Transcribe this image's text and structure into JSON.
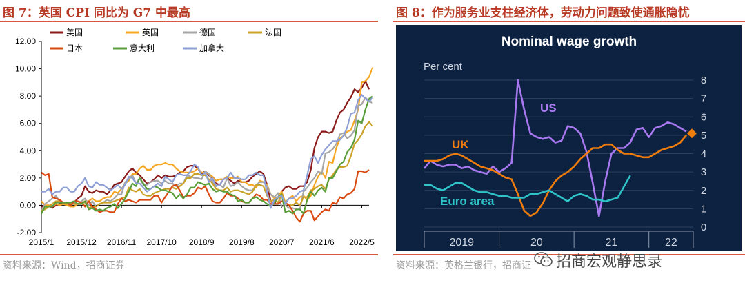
{
  "left_panel": {
    "figure_title": "图 7：英国 CPI 同比为 G7 中最高",
    "source": "资料来源：Wind，招商证券"
  },
  "right_panel": {
    "figure_title": "图 8：作为服务业支柱经济体，劳动力问题致使通胀隐忧",
    "source": "资料来源：英格兰银行，招商证",
    "watermark": "招商宏观静思录",
    "watermark_icon": "wechat-icon"
  },
  "chart_data": [
    {
      "type": "line",
      "title": "",
      "xlabel": "",
      "ylabel": "",
      "x_tick_labels": [
        "2015/1",
        "2015/12",
        "2016/11",
        "2017/10",
        "2018/9",
        "2019/8",
        "2020/7",
        "2021/6",
        "2022/5"
      ],
      "x_tick_months": [
        0,
        11,
        22,
        33,
        44,
        55,
        66,
        77,
        88
      ],
      "y_ticks": [
        "-2.00",
        "0.00",
        "2.00",
        "4.00",
        "6.00",
        "8.00",
        "10.00",
        "12.00"
      ],
      "ylim": [
        -2,
        12
      ],
      "grid": false,
      "legend": "top-left",
      "series": [
        {
          "name": "美国",
          "color": "#8b1a1a",
          "values": [
            -0.1,
            -0.1,
            0.0,
            -0.2,
            0.0,
            0.1,
            0.2,
            0.2,
            0.0,
            0.2,
            0.5,
            0.7,
            1.4,
            1.0,
            0.9,
            1.1,
            1.0,
            1.0,
            0.8,
            1.1,
            1.5,
            1.6,
            1.7,
            2.1,
            2.5,
            2.7,
            2.4,
            2.2,
            1.9,
            1.6,
            1.7,
            1.9,
            2.2,
            2.0,
            2.2,
            2.1,
            2.1,
            2.2,
            2.4,
            2.5,
            2.8,
            2.9,
            2.9,
            2.7,
            2.3,
            2.5,
            2.2,
            1.9,
            1.6,
            1.5,
            1.9,
            2.0,
            1.8,
            1.6,
            1.8,
            1.7,
            1.7,
            1.8,
            2.1,
            2.3,
            2.5,
            2.3,
            1.5,
            0.3,
            0.1,
            0.6,
            1.0,
            1.3,
            1.4,
            1.2,
            1.2,
            1.4,
            1.4,
            1.7,
            2.6,
            4.2,
            5.0,
            5.4,
            5.4,
            5.3,
            5.4,
            6.2,
            6.8,
            7.0,
            7.5,
            7.9,
            8.5,
            8.3,
            8.6,
            9.1,
            8.5
          ]
        },
        {
          "name": "英国",
          "color": "#f5a623",
          "values": [
            0.3,
            0.0,
            0.0,
            -0.1,
            0.1,
            0.0,
            0.1,
            0.0,
            -0.1,
            -0.1,
            0.1,
            0.2,
            0.3,
            0.3,
            0.5,
            0.3,
            0.3,
            0.5,
            0.6,
            0.6,
            1.0,
            0.9,
            1.2,
            1.6,
            1.8,
            2.3,
            2.3,
            2.7,
            2.9,
            2.6,
            2.6,
            2.9,
            3.0,
            3.0,
            3.1,
            3.0,
            3.0,
            2.7,
            2.5,
            2.4,
            2.4,
            2.4,
            2.5,
            2.7,
            2.4,
            2.4,
            2.3,
            2.1,
            1.8,
            1.9,
            1.9,
            2.1,
            2.0,
            2.0,
            2.1,
            1.7,
            1.7,
            1.5,
            1.5,
            1.3,
            1.8,
            1.7,
            1.5,
            0.8,
            0.5,
            0.6,
            1.0,
            0.2,
            0.5,
            0.7,
            0.3,
            0.6,
            0.7,
            0.4,
            0.7,
            1.5,
            2.1,
            2.5,
            2.0,
            3.2,
            3.1,
            4.2,
            4.9,
            5.1,
            5.4,
            5.5,
            6.2,
            7.0,
            9.0,
            9.1,
            9.4,
            10.1
          ]
        },
        {
          "name": "德国",
          "color": "#a6a6a6",
          "values": [
            -0.4,
            0.1,
            0.3,
            0.5,
            0.7,
            0.3,
            0.2,
            0.2,
            0.0,
            0.2,
            0.1,
            0.3,
            0.5,
            0.0,
            0.3,
            -0.1,
            0.1,
            0.2,
            0.4,
            0.3,
            0.5,
            0.8,
            0.8,
            1.7,
            1.9,
            2.2,
            1.6,
            2.0,
            1.5,
            1.5,
            1.7,
            1.8,
            1.8,
            1.6,
            1.8,
            1.6,
            1.6,
            1.4,
            1.6,
            1.6,
            2.2,
            2.1,
            2.0,
            2.0,
            1.9,
            2.5,
            2.3,
            1.7,
            1.4,
            1.5,
            1.3,
            2.0,
            1.4,
            1.5,
            1.7,
            1.4,
            1.2,
            1.1,
            1.1,
            1.5,
            1.7,
            1.7,
            1.4,
            0.8,
            0.6,
            0.9,
            -0.1,
            0.0,
            -0.2,
            -0.2,
            -0.3,
            -0.3,
            1.0,
            1.3,
            1.7,
            2.0,
            2.5,
            2.3,
            3.8,
            3.9,
            4.1,
            4.5,
            5.2,
            5.3,
            4.9,
            5.1,
            5.5,
            7.3,
            7.4,
            7.9,
            7.6,
            7.5
          ]
        },
        {
          "name": "法国",
          "color": "#c9a227",
          "values": [
            -0.4,
            -0.3,
            -0.1,
            0.1,
            0.3,
            0.3,
            0.2,
            0.1,
            0.1,
            0.1,
            0.1,
            0.2,
            0.2,
            -0.2,
            -0.1,
            -0.1,
            0.1,
            0.2,
            0.2,
            0.2,
            0.3,
            0.4,
            0.5,
            0.6,
            1.3,
            1.1,
            1.0,
            1.2,
            0.8,
            0.7,
            0.7,
            0.9,
            1.0,
            1.1,
            1.2,
            1.2,
            1.3,
            1.2,
            1.4,
            1.6,
            2.0,
            2.0,
            2.3,
            2.3,
            2.2,
            2.2,
            1.9,
            1.6,
            1.2,
            1.1,
            1.1,
            1.3,
            1.0,
            1.1,
            1.1,
            1.0,
            0.9,
            0.8,
            1.0,
            1.5,
            1.5,
            1.4,
            0.7,
            0.3,
            0.4,
            0.2,
            0.8,
            0.2,
            0.0,
            0.0,
            0.2,
            0.0,
            0.6,
            0.6,
            1.1,
            1.2,
            1.4,
            1.5,
            1.2,
            1.9,
            2.2,
            2.6,
            2.8,
            2.8,
            2.9,
            3.6,
            4.5,
            4.8,
            5.2,
            5.8,
            6.1,
            5.8
          ]
        },
        {
          "name": "日本",
          "color": "#d9480f",
          "values": [
            2.4,
            2.2,
            2.3,
            0.6,
            0.5,
            0.4,
            0.2,
            0.2,
            0.0,
            0.3,
            0.3,
            0.2,
            -0.1,
            0.3,
            -0.1,
            -0.3,
            -0.5,
            -0.4,
            -0.4,
            -0.5,
            -0.5,
            0.1,
            0.5,
            0.3,
            0.4,
            0.3,
            0.2,
            0.4,
            0.4,
            0.4,
            0.4,
            0.7,
            0.7,
            0.2,
            0.6,
            1.0,
            1.4,
            1.5,
            1.1,
            0.6,
            0.7,
            0.7,
            0.9,
            1.3,
            1.2,
            1.4,
            0.8,
            0.3,
            0.2,
            0.2,
            0.5,
            0.9,
            0.7,
            0.7,
            0.5,
            0.3,
            0.2,
            0.2,
            0.5,
            0.8,
            0.7,
            0.4,
            0.4,
            0.1,
            0.1,
            0.1,
            0.3,
            0.2,
            0.0,
            -0.4,
            -0.9,
            -1.2,
            -0.6,
            -0.4,
            -0.4,
            -1.1,
            -0.8,
            -0.5,
            -0.3,
            -0.4,
            0.2,
            0.1,
            0.6,
            0.5,
            0.8,
            0.9,
            1.2,
            2.5,
            2.5,
            2.4,
            2.6
          ]
        },
        {
          "name": "意大利",
          "color": "#5a9e3a",
          "values": [
            -0.6,
            -0.1,
            -0.1,
            -0.1,
            0.2,
            0.2,
            0.2,
            0.2,
            0.2,
            0.3,
            0.1,
            0.1,
            0.3,
            -0.3,
            -0.2,
            -0.4,
            -0.3,
            -0.4,
            -0.2,
            -0.1,
            0.1,
            -0.2,
            0.1,
            0.5,
            1.0,
            1.6,
            1.4,
            2.0,
            1.6,
            1.2,
            1.2,
            1.4,
            1.3,
            1.1,
            1.1,
            1.0,
            0.9,
            0.5,
            0.8,
            0.5,
            0.8,
            1.3,
            1.3,
            1.7,
            1.6,
            1.5,
            1.6,
            1.2,
            1.0,
            1.1,
            1.0,
            1.0,
            0.8,
            0.7,
            0.3,
            0.4,
            0.2,
            0.2,
            0.5,
            0.6,
            0.4,
            0.3,
            0.1,
            -0.1,
            0.2,
            0.6,
            0.8,
            -0.5,
            -0.4,
            -0.6,
            -0.3,
            -0.3,
            -0.6,
            0.4,
            1.0,
            0.7,
            1.1,
            1.3,
            1.0,
            2.0,
            2.0,
            2.5,
            3.0,
            3.2,
            3.9,
            4.2,
            4.8,
            6.2,
            6.0,
            7.0,
            7.8,
            8.0
          ]
        },
        {
          "name": "加拿大",
          "color": "#8e9fd6",
          "values": [
            1.0,
            1.0,
            1.2,
            0.8,
            1.0,
            1.0,
            1.3,
            1.3,
            1.0,
            1.0,
            1.4,
            1.6,
            2.0,
            1.4,
            1.3,
            1.7,
            1.5,
            1.5,
            1.3,
            1.1,
            1.3,
            1.5,
            1.2,
            1.5,
            2.1,
            2.0,
            1.6,
            1.6,
            1.3,
            1.0,
            1.2,
            1.4,
            1.6,
            1.4,
            2.1,
            1.9,
            1.7,
            2.2,
            2.3,
            2.2,
            2.2,
            2.5,
            3.0,
            2.8,
            2.2,
            2.4,
            1.7,
            2.0,
            1.4,
            1.5,
            1.9,
            2.0,
            2.4,
            2.0,
            2.0,
            1.9,
            1.9,
            2.2,
            2.2,
            2.4,
            2.2,
            2.2,
            0.9,
            -0.2,
            0.4,
            0.6,
            0.7,
            0.1,
            0.5,
            0.5,
            0.7,
            1.0,
            1.1,
            2.2,
            3.4,
            3.6,
            3.1,
            3.7,
            4.1,
            4.4,
            4.7,
            4.7,
            4.8,
            5.1,
            5.7,
            6.7,
            6.8,
            7.7,
            8.1,
            7.8,
            7.6,
            7.9
          ]
        }
      ]
    },
    {
      "type": "line",
      "title": "Nominal wage growth",
      "ylabel": "Per cent",
      "y_ticks": [
        "0",
        "1",
        "2",
        "3",
        "4",
        "5",
        "6",
        "7",
        "8"
      ],
      "ylim": [
        0,
        8
      ],
      "x_tick_labels": [
        "2019",
        "20",
        "21",
        "22"
      ],
      "grid": true,
      "series": [
        {
          "name": "US",
          "color": "#a878f0",
          "values": [
            3.2,
            3.6,
            3.4,
            3.3,
            3.4,
            3.4,
            3.2,
            3.3,
            3.1,
            3.0,
            2.9,
            3.3,
            3.0,
            3.2,
            3.5,
            8.0,
            6.4,
            5.1,
            4.9,
            4.8,
            4.9,
            4.6,
            4.7,
            5.5,
            5.4,
            5.1,
            4.1,
            2.4,
            0.6,
            2.5,
            4.0,
            4.3,
            4.3,
            4.6,
            5.3,
            5.4,
            4.9,
            5.4,
            5.5,
            5.7,
            5.6,
            5.4,
            5.2
          ]
        },
        {
          "name": "UK",
          "color": "#f07c0c",
          "values": [
            3.6,
            3.6,
            3.6,
            3.7,
            3.9,
            4.0,
            3.9,
            3.7,
            3.5,
            3.3,
            3.2,
            3.1,
            2.9,
            2.7,
            2.6,
            1.8,
            0.9,
            0.6,
            0.8,
            1.3,
            2.0,
            2.5,
            2.8,
            3.0,
            3.3,
            3.7,
            4.0,
            4.3,
            4.3,
            4.5,
            4.5,
            4.2,
            4.0,
            4.0,
            3.9,
            3.8,
            3.8,
            4.0,
            4.2,
            4.3,
            4.4,
            4.6,
            5.0
          ]
        },
        {
          "name": "Euro area",
          "color": "#2ec4c8",
          "values": [
            2.3,
            2.3,
            2.1,
            2.0,
            2.2,
            2.4,
            2.4,
            2.2,
            2.0,
            1.9,
            1.9,
            1.8,
            1.7,
            1.7,
            1.6,
            1.6,
            1.6,
            1.8,
            1.8,
            1.9,
            2.0,
            1.8,
            1.6,
            1.4,
            1.7,
            1.8,
            1.7,
            1.5,
            1.5,
            1.4,
            1.5,
            1.6,
            2.2,
            2.8
          ]
        }
      ],
      "projection": {
        "series": "UK",
        "value": 5.1,
        "marker": "diamond",
        "color": "#f07c0c"
      }
    }
  ]
}
